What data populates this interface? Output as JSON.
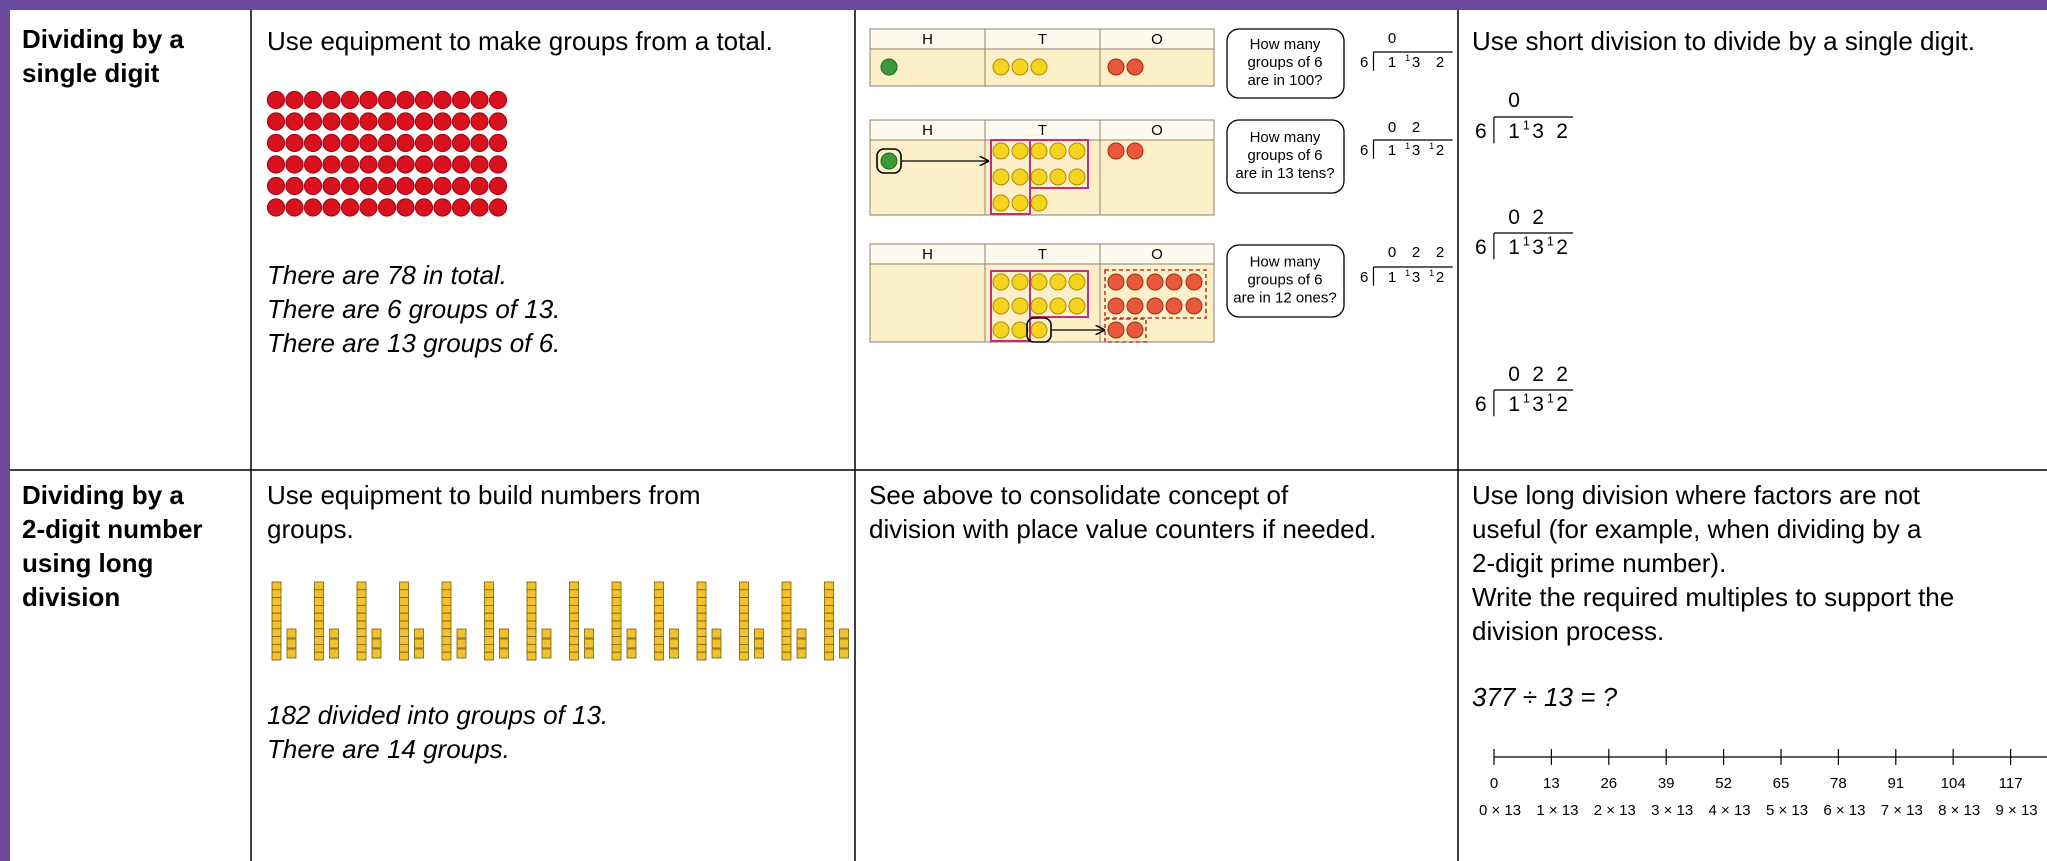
{
  "table": {
    "rows": [
      {
        "heading": [
          "Dividing by a",
          "single digit"
        ],
        "concrete": {
          "text": [
            "Use equipment to make groups from a total."
          ],
          "notes": [
            "There are 78 in total.",
            "There are 6 groups of 13.",
            "There are 13 groups of 6."
          ]
        },
        "pictorial": {
          "charts": [
            {
              "columns": [
                "H",
                "T",
                "O"
              ],
              "question": [
                "How many",
                "groups of 6",
                "are in 100?"
              ],
              "division": {
                "divisor": "6",
                "quotient": [
                  "0"
                ],
                "dividend": [
                  {
                    "digit": "1"
                  },
                  {
                    "carry": "1",
                    "digit": "3"
                  },
                  {
                    "digit": "2"
                  }
                ]
              }
            },
            {
              "columns": [
                "H",
                "T",
                "O"
              ],
              "question": [
                "How many",
                "groups of 6",
                "are in 13 tens?"
              ],
              "division": {
                "divisor": "6",
                "quotient": [
                  "0",
                  "2"
                ],
                "dividend": [
                  {
                    "digit": "1"
                  },
                  {
                    "carry": "1",
                    "digit": "3"
                  },
                  {
                    "carry": "1",
                    "digit": "2"
                  }
                ]
              }
            },
            {
              "columns": [
                "H",
                "T",
                "O"
              ],
              "question": [
                "How many",
                "groups of 6",
                "are in 12 ones?"
              ],
              "division": {
                "divisor": "6",
                "quotient": [
                  "0",
                  "2",
                  "2"
                ],
                "dividend": [
                  {
                    "digit": "1"
                  },
                  {
                    "carry": "1",
                    "digit": "3"
                  },
                  {
                    "carry": "1",
                    "digit": "2"
                  }
                ]
              }
            }
          ]
        },
        "abstract": {
          "text": [
            "Use short division to divide by a single digit."
          ],
          "divisions": [
            {
              "divisor": "6",
              "quotient": [
                "0"
              ],
              "dividend": [
                {
                  "digit": "1"
                },
                {
                  "carry": "1",
                  "digit": "3"
                },
                {
                  "digit": "2"
                }
              ]
            },
            {
              "divisor": "6",
              "quotient": [
                "0",
                "2"
              ],
              "dividend": [
                {
                  "digit": "1"
                },
                {
                  "carry": "1",
                  "digit": "3"
                },
                {
                  "carry": "1",
                  "digit": "2"
                }
              ]
            },
            {
              "divisor": "6",
              "quotient": [
                "0",
                "2",
                "2"
              ],
              "dividend": [
                {
                  "digit": "1"
                },
                {
                  "carry": "1",
                  "digit": "3"
                },
                {
                  "carry": "1",
                  "digit": "2"
                }
              ]
            }
          ]
        }
      },
      {
        "heading": [
          "Dividing by a",
          "2-digit number",
          "using long",
          "division"
        ],
        "concrete": {
          "text": [
            "Use equipment to build numbers from",
            "groups."
          ],
          "notes": [
            "182 divided into groups of 13.",
            "There are 14 groups."
          ]
        },
        "pictorial": {
          "text": [
            "See above to consolidate concept of",
            "division with place value counters if needed."
          ]
        },
        "abstract": {
          "text": [
            "Use long division where factors are not",
            "useful (for example, when dividing by a",
            "2-digit prime number).",
            "Write the required multiples to support the",
            "division process."
          ],
          "equation": "377 ÷ 13 = ?",
          "number_line": {
            "values": [
              "0",
              "13",
              "26",
              "39",
              "52",
              "65",
              "78",
              "91",
              "104",
              "117"
            ],
            "labels": [
              "0 × 13",
              "1 × 13",
              "2 × 13",
              "3 × 13",
              "4 × 13",
              "5 × 13",
              "6 × 13",
              "7 × 13",
              "8 × 13",
              "9 × 13"
            ]
          }
        }
      }
    ]
  }
}
